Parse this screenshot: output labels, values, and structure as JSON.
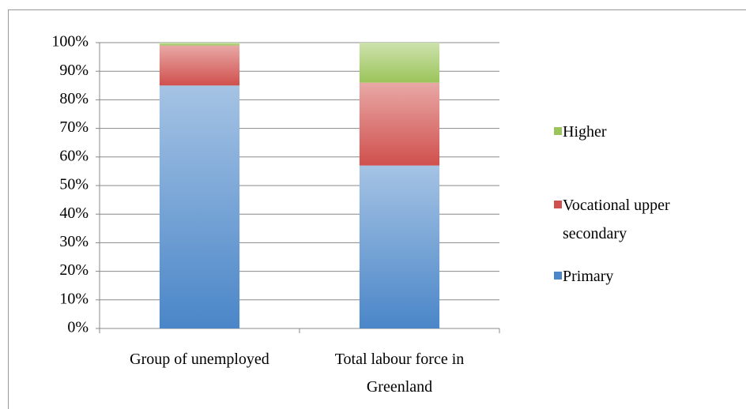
{
  "chart_data": {
    "type": "stacked_bar",
    "categories": [
      "Group of unemployed",
      "Total labour force in Greenland"
    ],
    "series": [
      {
        "name": "Primary",
        "color": "#4a86c8",
        "values": [
          85,
          57
        ]
      },
      {
        "name": "Vocational upper secondary",
        "color": "#d0504d",
        "values": [
          14,
          29
        ]
      },
      {
        "name": "Higher",
        "color": "#9bc45a",
        "values": [
          1,
          14
        ]
      }
    ],
    "ylim": [
      0,
      100
    ],
    "yticks": [
      {
        "value": 0,
        "label": "0%"
      },
      {
        "value": 10,
        "label": "10%"
      },
      {
        "value": 20,
        "label": "20%"
      },
      {
        "value": 30,
        "label": "30%"
      },
      {
        "value": 40,
        "label": "40%"
      },
      {
        "value": 50,
        "label": "50%"
      },
      {
        "value": 60,
        "label": "60%"
      },
      {
        "value": 70,
        "label": "70%"
      },
      {
        "value": 80,
        "label": "80%"
      },
      {
        "value": 90,
        "label": "90%"
      },
      {
        "value": 100,
        "label": "100%"
      }
    ],
    "grid": true,
    "legend": "right"
  }
}
